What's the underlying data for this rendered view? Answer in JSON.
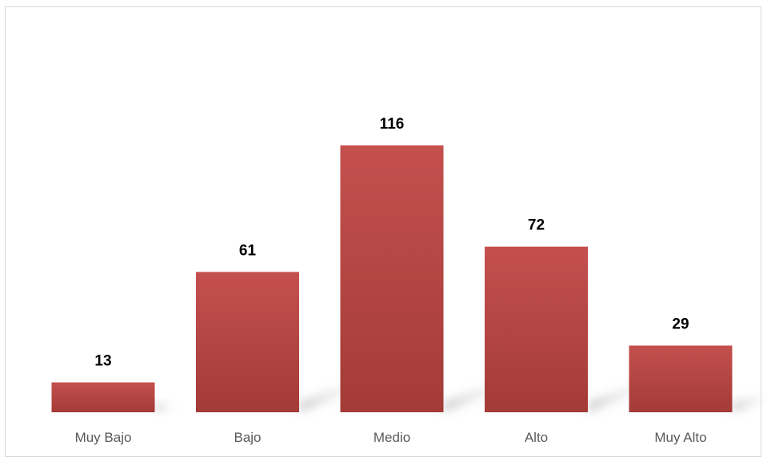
{
  "chart_data": {
    "type": "bar",
    "categories": [
      "Muy Bajo",
      "Bajo",
      "Medio",
      "Alto",
      "Muy Alto"
    ],
    "values": [
      13,
      61,
      116,
      72,
      29
    ],
    "title": "",
    "xlabel": "",
    "ylabel": "",
    "ylim": [
      0,
      140
    ],
    "grid": false,
    "legend": "none",
    "data_labels": true,
    "bar_color": "#b5423f",
    "bar_color_light": "#c4504e",
    "bar_color_dark": "#a33b37"
  }
}
